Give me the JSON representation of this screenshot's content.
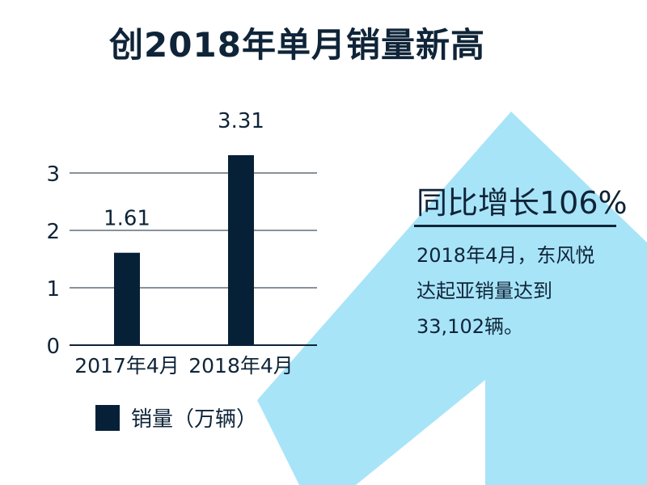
{
  "title": "创2018年单月销量新高",
  "highlight": {
    "heading": "同比增长106%",
    "body": "2018年4月，东风悦达起亚销量达到33,102辆。"
  },
  "colors": {
    "bar": "#062038",
    "text": "#0f2438",
    "arrow": "#a8e4f8",
    "grid": "#0f2438"
  },
  "chart_data": {
    "type": "bar",
    "title": "创2018年单月销量新高",
    "categories": [
      "2017年4月",
      "2018年4月"
    ],
    "series": [
      {
        "name": "销量（万辆）",
        "values": [
          1.61,
          3.31
        ]
      }
    ],
    "data_labels": [
      "1.61",
      "3.31"
    ],
    "y_ticks": [
      "0",
      "1",
      "2",
      "3"
    ],
    "ylim": [
      0,
      3.5
    ],
    "grid": true,
    "legend_position": "bottom-left"
  }
}
